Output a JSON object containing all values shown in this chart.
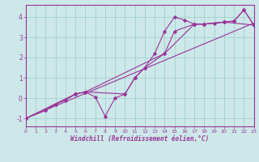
{
  "xlabel": "Windchill (Refroidissement éolien,°C)",
  "xlim": [
    0,
    23
  ],
  "ylim": [
    -1.4,
    4.6
  ],
  "xticks": [
    0,
    1,
    2,
    3,
    4,
    5,
    6,
    7,
    8,
    9,
    10,
    11,
    12,
    13,
    14,
    15,
    16,
    17,
    18,
    19,
    20,
    21,
    22,
    23
  ],
  "yticks": [
    -1,
    0,
    1,
    2,
    3,
    4
  ],
  "bg_color": "#cde8e8",
  "line_color": "#993399",
  "grid_color": "#99cccc",
  "line1_x": [
    0,
    23
  ],
  "line1_y": [
    -1.0,
    3.7
  ],
  "line2_x": [
    0,
    5,
    6,
    7,
    8,
    9,
    10,
    11,
    12,
    13,
    14,
    15,
    16,
    17,
    18,
    19,
    20,
    21,
    22,
    23
  ],
  "line2_y": [
    -1.0,
    0.2,
    0.3,
    0.05,
    -0.9,
    0.0,
    0.2,
    1.0,
    1.5,
    2.2,
    3.3,
    4.0,
    3.85,
    3.65,
    3.65,
    3.7,
    3.75,
    3.8,
    4.35,
    3.6
  ],
  "line3_x": [
    0,
    2,
    3,
    4,
    5,
    6,
    10,
    11,
    12,
    14,
    15,
    17,
    18,
    20,
    21,
    22,
    23
  ],
  "line3_y": [
    -1.0,
    -0.6,
    -0.3,
    -0.1,
    0.2,
    0.3,
    0.2,
    1.0,
    1.5,
    2.2,
    3.3,
    3.65,
    3.65,
    3.75,
    3.8,
    4.35,
    3.6
  ],
  "line4_x": [
    0,
    2,
    3,
    4,
    5,
    6,
    14,
    17,
    18,
    20,
    23
  ],
  "line4_y": [
    -1.0,
    -0.6,
    -0.3,
    -0.1,
    0.2,
    0.3,
    2.2,
    3.65,
    3.65,
    3.75,
    3.6
  ]
}
